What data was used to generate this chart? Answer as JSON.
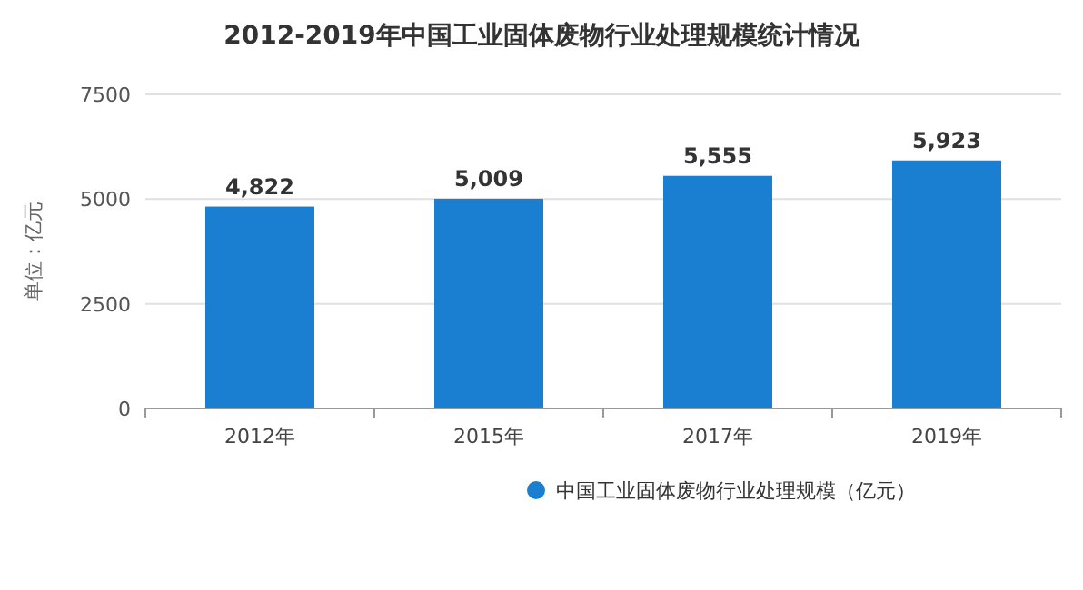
{
  "chart_data": {
    "type": "bar",
    "title": "2012-2019年中国工业固体废物行业处理规模统计情况",
    "ylabel": "单位：亿元",
    "categories": [
      "2012年",
      "2015年",
      "2017年",
      "2019年"
    ],
    "series": [
      {
        "name": "中国工业固体废物行业处理规模（亿元）",
        "color": "#1a7fd0",
        "values": [
          4822,
          5009,
          5555,
          5923
        ],
        "value_labels": [
          "4,822",
          "5,009",
          "5,555",
          "5,923"
        ]
      }
    ],
    "ylim": [
      0,
      7500
    ],
    "yticks": [
      0,
      2500,
      5000,
      7500
    ],
    "grid": "y",
    "legend": "bottom"
  }
}
